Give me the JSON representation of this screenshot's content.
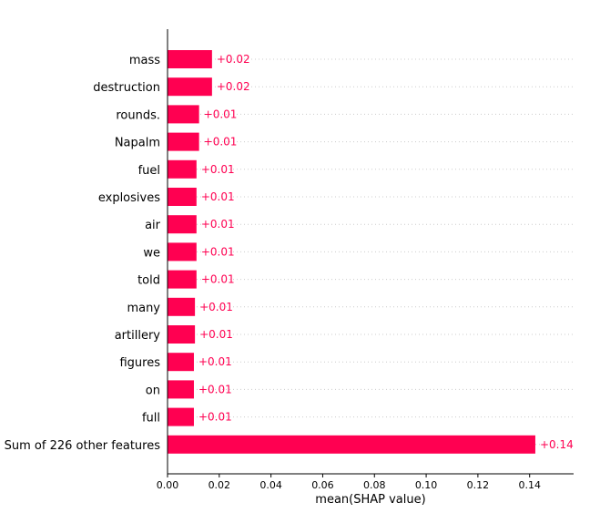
{
  "chart_data": {
    "type": "bar",
    "orientation": "horizontal",
    "categories": [
      "mass",
      "destruction",
      "rounds.",
      "Napalm",
      "fuel",
      "explosives",
      "air",
      "we",
      "told",
      "many",
      "artillery",
      "figures",
      "on",
      "full",
      "Sum of 226 other features"
    ],
    "values": [
      0.0172,
      0.0172,
      0.0122,
      0.0122,
      0.0112,
      0.0112,
      0.0112,
      0.0112,
      0.0112,
      0.0106,
      0.0106,
      0.0102,
      0.0102,
      0.0102,
      0.1422
    ],
    "value_labels": [
      "+0.02",
      "+0.02",
      "+0.01",
      "+0.01",
      "+0.01",
      "+0.01",
      "+0.01",
      "+0.01",
      "+0.01",
      "+0.01",
      "+0.01",
      "+0.01",
      "+0.01",
      "+0.01",
      "+0.14"
    ],
    "xlabel": "mean(SHAP value)",
    "ylabel": "",
    "xlim": [
      0,
      0.157
    ],
    "xticks": [
      0.0,
      0.02,
      0.04,
      0.06,
      0.08,
      0.1,
      0.12,
      0.14
    ],
    "xtick_labels": [
      "0.00",
      "0.02",
      "0.04",
      "0.06",
      "0.08",
      "0.10",
      "0.12",
      "0.14"
    ],
    "grid": "dotted horizontal row lines",
    "bar_color": "#ff0051",
    "label_color": "#ff0051"
  }
}
